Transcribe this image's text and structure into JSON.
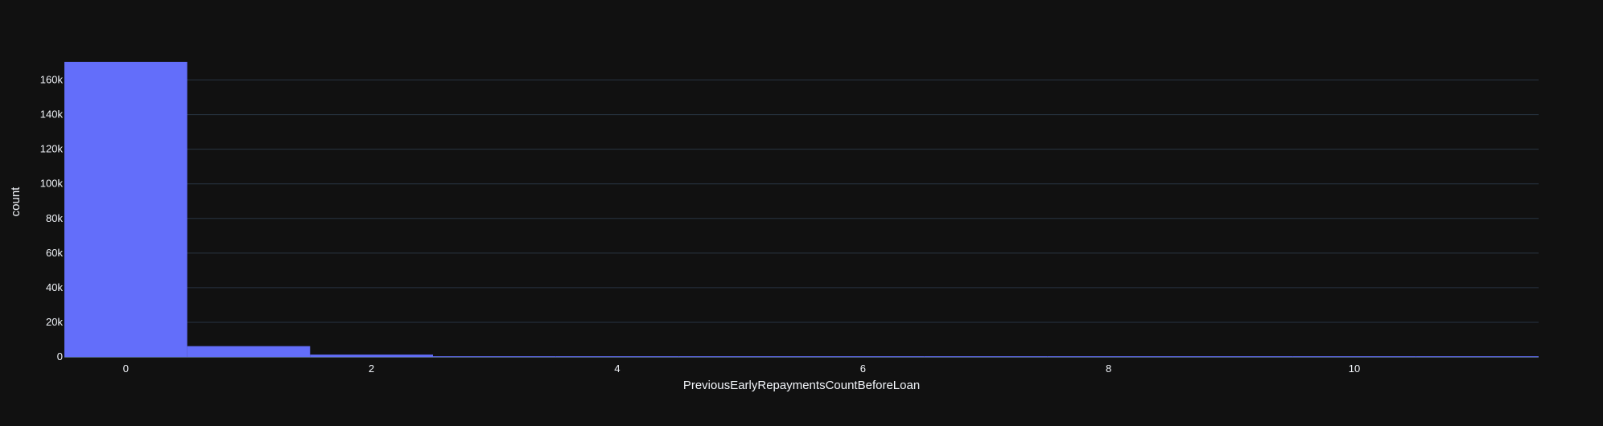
{
  "colors": {
    "background": "#111111",
    "grid": "#283442",
    "axis_line": "#506784",
    "bar": "#636efa",
    "text": "#f2f5fa"
  },
  "chart_data": {
    "type": "bar",
    "subtype": "histogram",
    "xlabel": "PreviousEarlyRepaymentsCountBeforeLoan",
    "ylabel": "count",
    "xlim": [
      -0.5,
      11.5
    ],
    "ylim": [
      0,
      170000
    ],
    "x_tick_values": [
      0,
      2,
      4,
      6,
      8,
      10
    ],
    "x_tick_labels": [
      "0",
      "2",
      "4",
      "6",
      "8",
      "10"
    ],
    "y_tick_values": [
      0,
      20000,
      40000,
      60000,
      80000,
      100000,
      120000,
      140000,
      160000
    ],
    "y_tick_labels": [
      "0",
      "20k",
      "40k",
      "60k",
      "80k",
      "100k",
      "120k",
      "140k",
      "160k"
    ],
    "grid": true,
    "legend": "none",
    "bins": [
      0,
      1,
      2,
      3,
      4,
      5,
      6,
      7,
      8,
      9,
      10,
      11
    ],
    "values": [
      170500,
      6200,
      1300,
      350,
      90,
      30,
      12,
      5,
      3,
      2,
      1,
      1
    ]
  }
}
